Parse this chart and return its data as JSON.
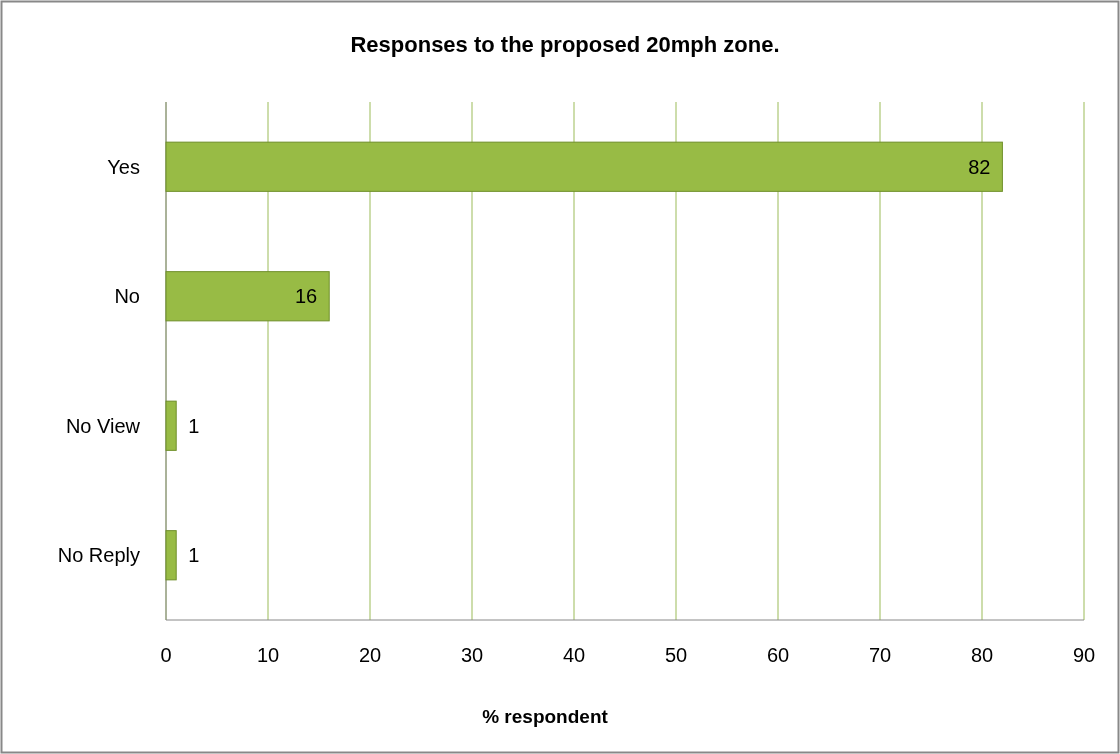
{
  "chart_data": {
    "type": "bar",
    "orientation": "horizontal",
    "title": "Responses to the proposed 20mph zone.",
    "xlabel": "% respondent",
    "categories": [
      "Yes",
      "No",
      "No View",
      "No Reply"
    ],
    "values": [
      82,
      16,
      1,
      1
    ],
    "color": "#98bb45",
    "xlim": [
      0,
      90
    ],
    "xticks": [
      0,
      10,
      20,
      30,
      40,
      50,
      60,
      70,
      80,
      90
    ],
    "grid": "x",
    "data_labels": true
  }
}
